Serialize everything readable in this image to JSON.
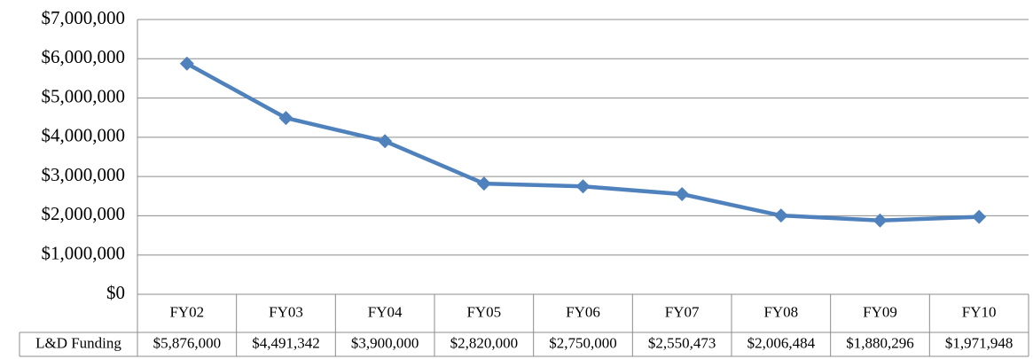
{
  "chart_data": {
    "type": "line",
    "categories": [
      "FY02",
      "FY03",
      "FY04",
      "FY05",
      "FY06",
      "FY07",
      "FY08",
      "FY09",
      "FY10"
    ],
    "series": [
      {
        "name": "L&D Funding",
        "color": "#4f81bd",
        "values": [
          5876000,
          4491342,
          3900000,
          2820000,
          2750000,
          2550473,
          2006484,
          1880296,
          1971948
        ],
        "value_labels": [
          "$5,876,000",
          "$4,491,342",
          "$3,900,000",
          "$2,820,000",
          "$2,750,000",
          "$2,550,473",
          "$2,006,484",
          "$1,880,296",
          "$1,971,948"
        ]
      }
    ],
    "ylim": [
      0,
      7000000
    ],
    "yticks": [
      {
        "value": 0,
        "label": "$0"
      },
      {
        "value": 1000000,
        "label": "$1,000,000"
      },
      {
        "value": 2000000,
        "label": "$2,000,000"
      },
      {
        "value": 3000000,
        "label": "$3,000,000"
      },
      {
        "value": 4000000,
        "label": "$4,000,000"
      },
      {
        "value": 5000000,
        "label": "$5,000,000"
      },
      {
        "value": 6000000,
        "label": "$6,000,000"
      },
      {
        "value": 7000000,
        "label": "$7,000,000"
      }
    ],
    "grid": true
  }
}
